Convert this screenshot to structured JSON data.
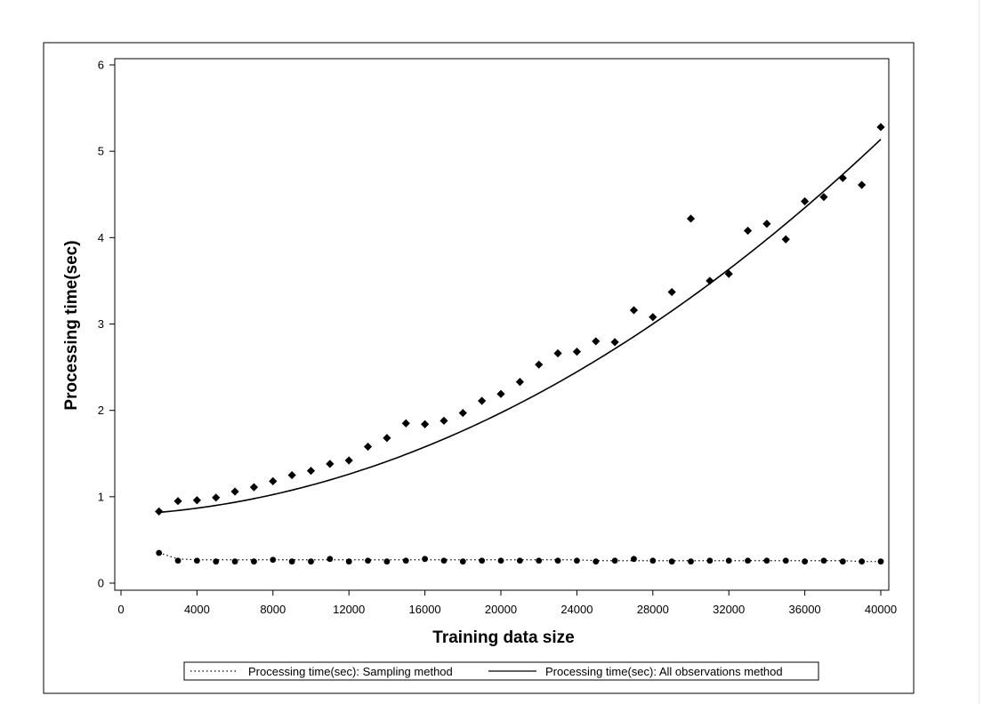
{
  "chart_data": {
    "type": "scatter",
    "xlabel": "Training data size",
    "ylabel": "Processing time(sec)",
    "xlim": [
      0,
      40000
    ],
    "ylim": [
      0,
      6
    ],
    "xticks": [
      "0",
      "4000",
      "8000",
      "12000",
      "16000",
      "20000",
      "24000",
      "28000",
      "32000",
      "36000",
      "40000"
    ],
    "yticks": [
      "0",
      "1",
      "2",
      "3",
      "4",
      "5",
      "6"
    ],
    "grid": false,
    "legend_position": "bottom",
    "series": [
      {
        "name": "Processing time(sec): Sampling method",
        "marker": "circle",
        "line_style": "dotted",
        "x": [
          2000,
          3000,
          4000,
          5000,
          6000,
          7000,
          8000,
          9000,
          10000,
          11000,
          12000,
          13000,
          14000,
          15000,
          16000,
          17000,
          18000,
          19000,
          20000,
          21000,
          22000,
          23000,
          24000,
          25000,
          26000,
          27000,
          28000,
          29000,
          30000,
          31000,
          32000,
          33000,
          34000,
          35000,
          36000,
          37000,
          38000,
          39000,
          40000
        ],
        "y": [
          0.35,
          0.26,
          0.26,
          0.25,
          0.25,
          0.25,
          0.27,
          0.25,
          0.25,
          0.28,
          0.25,
          0.26,
          0.25,
          0.26,
          0.28,
          0.26,
          0.25,
          0.26,
          0.26,
          0.26,
          0.26,
          0.26,
          0.26,
          0.25,
          0.26,
          0.28,
          0.26,
          0.25,
          0.25,
          0.26,
          0.26,
          0.26,
          0.26,
          0.26,
          0.25,
          0.26,
          0.25,
          0.25,
          0.25
        ],
        "fit_y": [
          0.35,
          0.28,
          0.27,
          0.27,
          0.27,
          0.27,
          0.27,
          0.27,
          0.27,
          0.27,
          0.27,
          0.27,
          0.27,
          0.27,
          0.27,
          0.27,
          0.27,
          0.27,
          0.27,
          0.27,
          0.27,
          0.27,
          0.27,
          0.26,
          0.26,
          0.26,
          0.26,
          0.26,
          0.26,
          0.26,
          0.26,
          0.26,
          0.26,
          0.26,
          0.26,
          0.26,
          0.26,
          0.25,
          0.25
        ]
      },
      {
        "name": "Processing time(sec): All observations method",
        "marker": "diamond",
        "line_style": "solid",
        "x": [
          2000,
          3000,
          4000,
          5000,
          6000,
          7000,
          8000,
          9000,
          10000,
          11000,
          12000,
          13000,
          14000,
          15000,
          16000,
          17000,
          18000,
          19000,
          20000,
          21000,
          22000,
          23000,
          24000,
          25000,
          26000,
          27000,
          28000,
          29000,
          30000,
          31000,
          32000,
          33000,
          34000,
          35000,
          36000,
          37000,
          38000,
          39000,
          40000
        ],
        "y": [
          0.83,
          0.95,
          0.96,
          0.99,
          1.06,
          1.11,
          1.18,
          1.25,
          1.3,
          1.38,
          1.42,
          1.58,
          1.68,
          1.85,
          1.84,
          1.88,
          1.97,
          2.11,
          2.19,
          2.33,
          2.53,
          2.66,
          2.68,
          2.8,
          2.79,
          3.16,
          3.08,
          3.37,
          4.22,
          3.5,
          3.58,
          4.08,
          4.16,
          3.98,
          4.42,
          4.47,
          4.69,
          4.61,
          5.28
        ],
        "fit": "quadratic",
        "fit_coef": [
          0.79,
          9.5e-06,
          2.48e-09
        ]
      }
    ]
  }
}
